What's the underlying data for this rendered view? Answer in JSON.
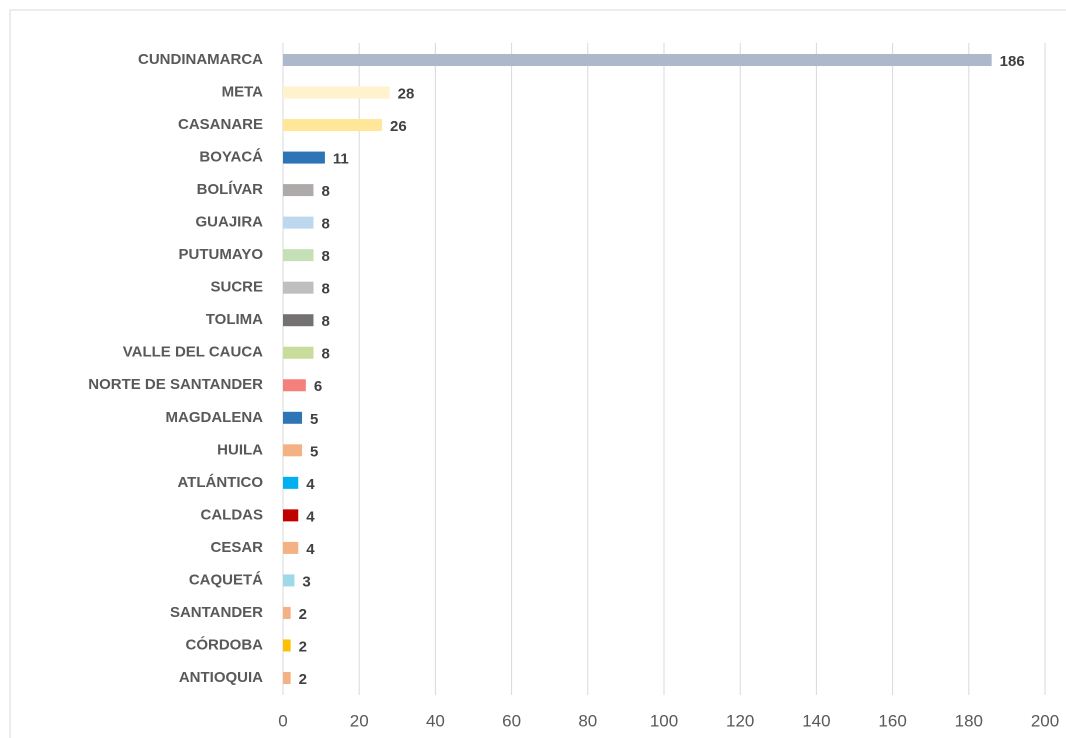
{
  "chart_data": {
    "type": "bar",
    "orientation": "horizontal",
    "categories": [
      "CUNDINAMARCA",
      "META",
      "CASANARE",
      "BOYACÁ",
      "BOLÍVAR",
      "GUAJIRA",
      "PUTUMAYO",
      "SUCRE",
      "TOLIMA",
      "VALLE DEL CAUCA",
      "NORTE DE SANTANDER",
      "MAGDALENA",
      "HUILA",
      "ATLÁNTICO",
      "CALDAS",
      "CESAR",
      "CAQUETÁ",
      "SANTANDER",
      "CÓRDOBA",
      "ANTIOQUIA"
    ],
    "values": [
      186,
      28,
      26,
      11,
      8,
      8,
      8,
      8,
      8,
      8,
      6,
      5,
      5,
      4,
      4,
      4,
      3,
      2,
      2,
      2
    ],
    "colors": [
      "#adb9ca",
      "#fff2cc",
      "#ffe699",
      "#2e75b6",
      "#aeaaaa",
      "#bdd7ee",
      "#c5e0b4",
      "#bfbfbf",
      "#767171",
      "#c9dc9b",
      "#f4807c",
      "#2e75b6",
      "#f4b183",
      "#00b0f0",
      "#c00000",
      "#f4b183",
      "#9dd9e6",
      "#f4b183",
      "#ffc000",
      "#f4b183"
    ],
    "xlim": [
      0,
      200
    ],
    "xticks": [
      0,
      20,
      40,
      60,
      80,
      100,
      120,
      140,
      160,
      180,
      200
    ],
    "grid": true
  }
}
